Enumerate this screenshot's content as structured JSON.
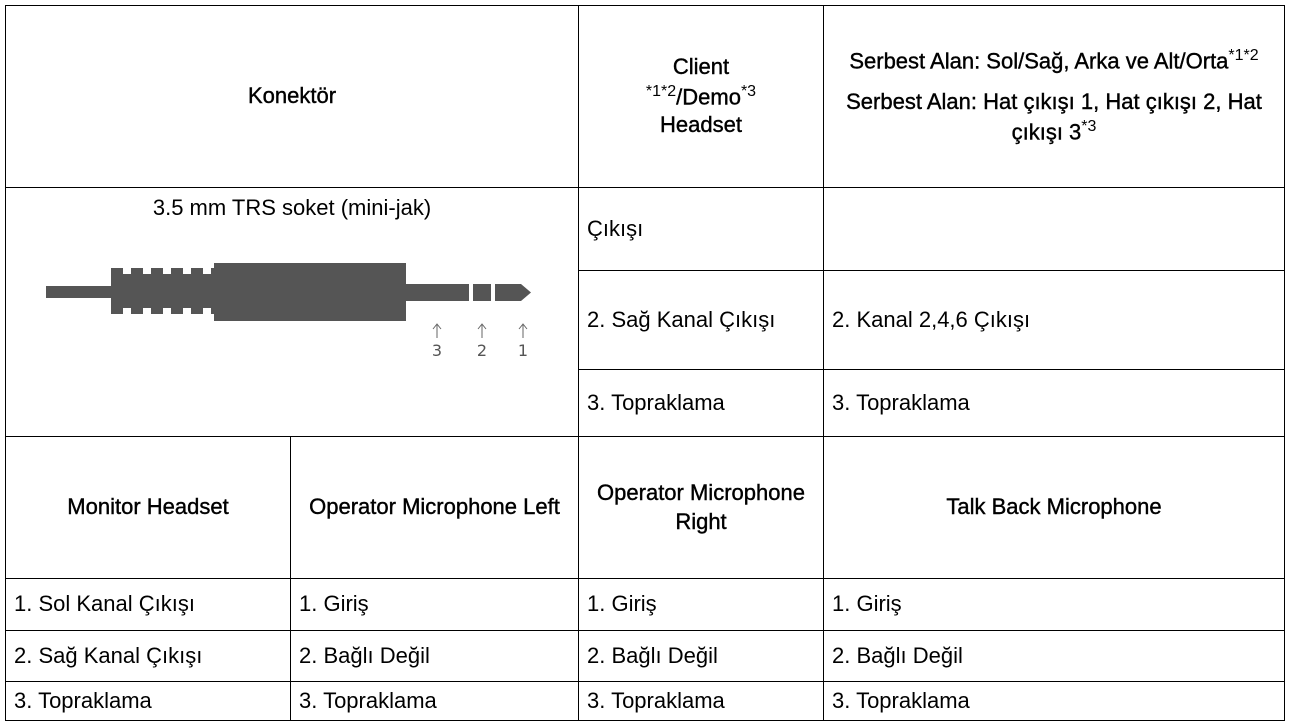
{
  "top_header": {
    "connector": "Konektör",
    "client": [
      "Client",
      "*1*2",
      "/Demo",
      "*3",
      "Headset"
    ],
    "free_field": [
      "Serbest Alan: Sol/Sağ, Arka ve Alt/Orta",
      "*1*2",
      "Serbest Alan: Hat çıkışı 1, Hat çıkışı 2, Hat çıkışı 3",
      "*3"
    ]
  },
  "connector": {
    "caption": "3.5 mm TRS soket (mini-jak)",
    "pins": [
      "3",
      "2",
      "1"
    ]
  },
  "top_rows": [
    [
      "Çıkışı"
    ],
    [
      "2. Sağ Kanal Çıkışı",
      "2. Kanal 2,4,6 Çıkışı"
    ],
    [
      "3. Topraklama",
      "3. Topraklama"
    ]
  ],
  "bottom_header": [
    "Monitor Headset",
    "Operator Microphone Left",
    "Operator Microphone Right",
    "Talk Back Microphone"
  ],
  "bottom_rows": [
    [
      "1. Sol Kanal Çıkışı",
      "1. Giriş",
      "1. Giriş",
      "1. Giriş"
    ],
    [
      "2. Sağ Kanal Çıkışı",
      "2. Bağlı Değil",
      "2. Bağlı Değil",
      "2. Bağlı Değil"
    ],
    [
      "3. Topraklama",
      "3. Topraklama",
      "3. Topraklama",
      "3. Topraklama"
    ]
  ]
}
